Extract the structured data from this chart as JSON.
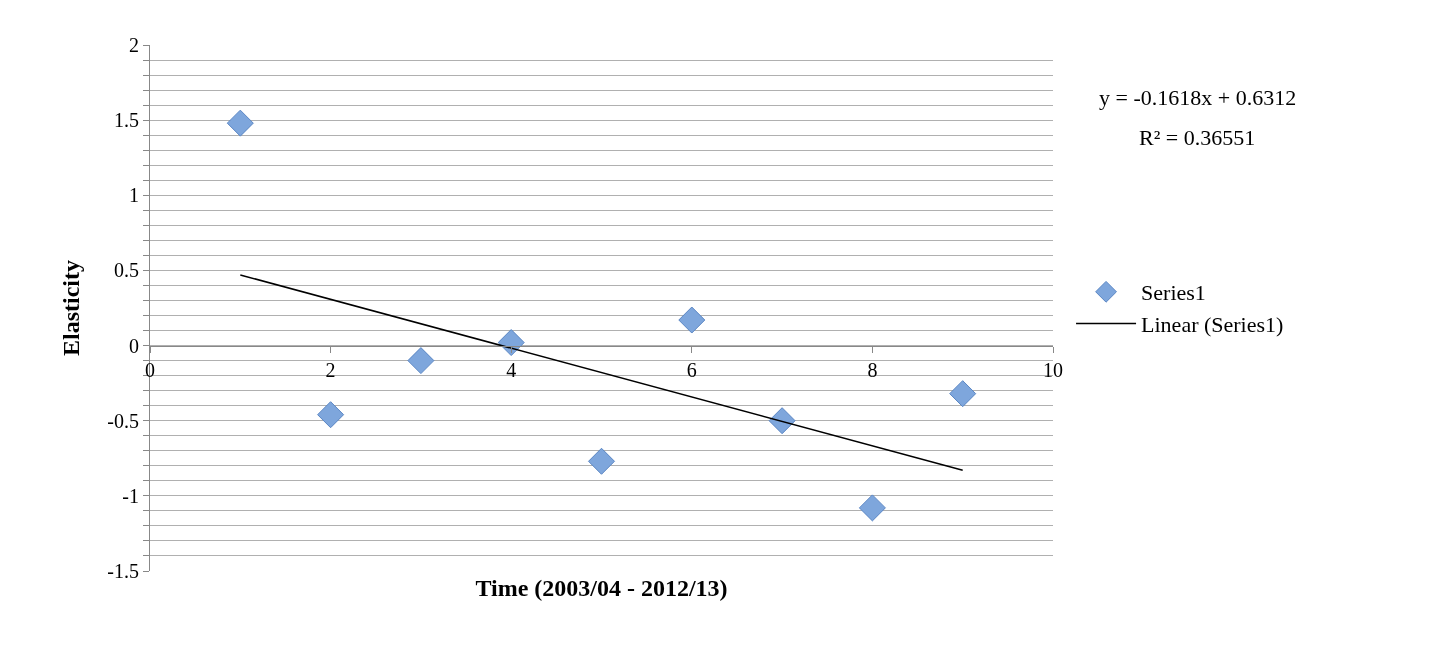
{
  "chart_data": {
    "type": "scatter",
    "xlabel": "Time (2003/04 - 2012/13)",
    "ylabel": "Elasticity",
    "xlim": [
      0,
      10
    ],
    "xticks": [
      0,
      2,
      4,
      6,
      8,
      10
    ],
    "ylim": [
      -1.5,
      2
    ],
    "yticks": [
      -1.5,
      {
        "value": -1.4,
        "label": null
      },
      {
        "value": -1.3,
        "label": null
      },
      {
        "value": -1.2,
        "label": null
      },
      {
        "value": -1.1,
        "label": null
      },
      -1,
      {
        "value": -0.9,
        "label": null
      },
      {
        "value": -0.8,
        "label": null
      },
      {
        "value": -0.7,
        "label": null
      },
      {
        "value": -0.6,
        "label": null
      },
      -0.5,
      {
        "value": -0.4,
        "label": null
      },
      {
        "value": -0.3,
        "label": null
      },
      {
        "value": -0.2,
        "label": null
      },
      {
        "value": -0.1,
        "label": null
      },
      0,
      {
        "value": 0.1,
        "label": null
      },
      {
        "value": 0.2,
        "label": null
      },
      {
        "value": 0.3,
        "label": null
      },
      {
        "value": 0.4,
        "label": null
      },
      0.5,
      {
        "value": 0.6,
        "label": null
      },
      {
        "value": 0.7,
        "label": null
      },
      {
        "value": 0.8,
        "label": null
      },
      {
        "value": 0.9,
        "label": null
      },
      1,
      {
        "value": 1.1,
        "label": null
      },
      {
        "value": 1.2,
        "label": null
      },
      {
        "value": 1.3,
        "label": null
      },
      {
        "value": 1.4,
        "label": null
      },
      1.5,
      {
        "value": 1.6,
        "label": null
      },
      {
        "value": 1.7,
        "label": null
      },
      {
        "value": 1.8,
        "label": null
      },
      {
        "value": 1.9,
        "label": null
      },
      2
    ],
    "grid": "y",
    "legend": "right",
    "series": [
      {
        "name": "Series1",
        "marker": "diamond",
        "color": "#7ea6dc",
        "x": [
          1,
          2,
          3,
          4,
          5,
          6,
          7,
          8,
          9
        ],
        "values": [
          1.48,
          -0.46,
          -0.1,
          0.02,
          -0.77,
          0.17,
          -0.5,
          -1.08,
          -0.32
        ]
      },
      {
        "name": "Linear (Series1)",
        "type": "line",
        "color": "#000000",
        "x": [
          1,
          9
        ],
        "values": [
          0.47,
          -0.83
        ]
      }
    ],
    "annotations": [
      "y = -0.1618x + 0.6312",
      "R² = 0.36551"
    ]
  }
}
